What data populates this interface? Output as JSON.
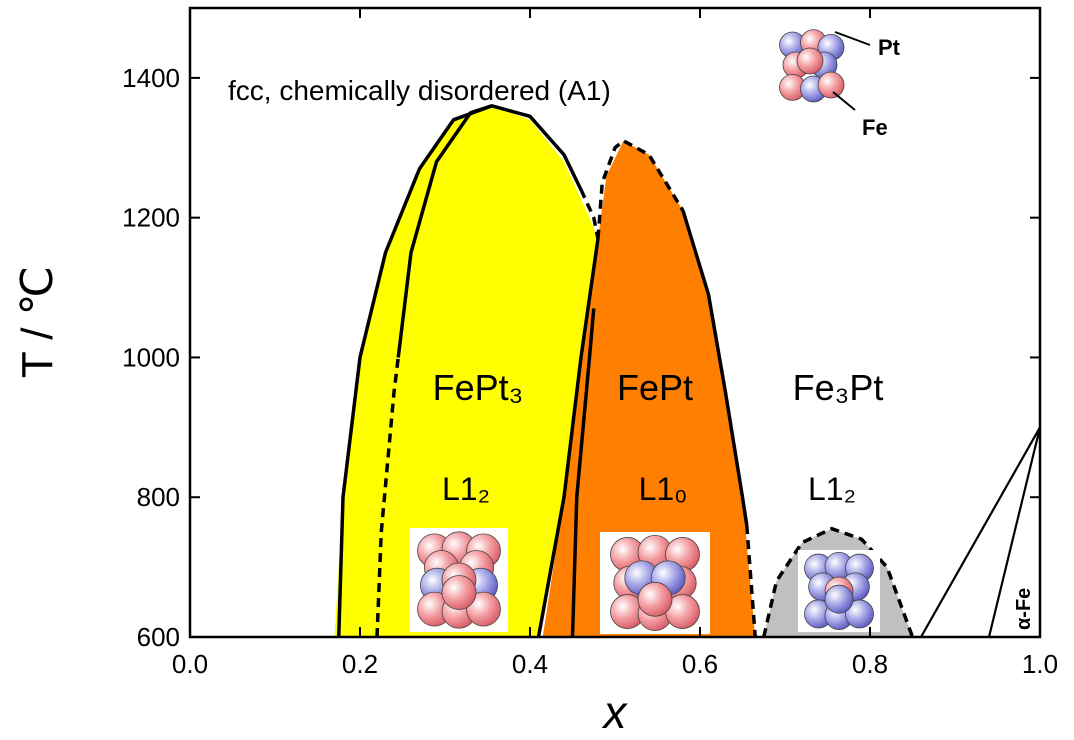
{
  "chart_data": {
    "type": "phase-diagram",
    "xlabel": "x",
    "ylabel": "T / ℃",
    "xlim": [
      0,
      1.0
    ],
    "ylim": [
      600,
      1500
    ],
    "xticks": [
      {
        "value": 0,
        "label": "0.0"
      },
      0.2,
      0.4,
      0.6,
      0.8,
      {
        "value": 1.0,
        "label": "1.0"
      }
    ],
    "yticks": [
      600,
      800,
      1000,
      1200,
      1400
    ],
    "regions": [
      {
        "color": "#ffff00",
        "x": [
          0.17,
          0.18,
          0.2,
          0.23,
          0.27,
          0.31,
          0.355,
          0.4,
          0.44,
          0.47,
          0.48,
          0.46,
          0.44,
          0.41
        ],
        "y": [
          600,
          800,
          1000,
          1150,
          1270,
          1340,
          1360,
          1340,
          1280,
          1200,
          1170,
          1000,
          800,
          600
        ]
      },
      {
        "color": "#ff7f00",
        "x": [
          0.415,
          0.44,
          0.46,
          0.48,
          0.49,
          0.51,
          0.54,
          0.58,
          0.61,
          0.63,
          0.65,
          0.665
        ],
        "y": [
          600,
          800,
          1000,
          1170,
          1260,
          1310,
          1290,
          1210,
          1090,
          950,
          800,
          600
        ]
      },
      {
        "color": "#c0c0c0",
        "x": [
          0.675,
          0.69,
          0.72,
          0.755,
          0.79,
          0.82,
          0.85
        ],
        "y": [
          600,
          680,
          735,
          755,
          740,
          700,
          600
        ]
      }
    ],
    "curves": [
      {
        "style": "solid",
        "x": [
          0.175,
          0.18,
          0.2,
          0.23,
          0.27,
          0.31,
          0.355,
          0.4,
          0.44,
          0.46
        ],
        "y": [
          600,
          800,
          1000,
          1150,
          1270,
          1340,
          1360,
          1345,
          1290,
          1240
        ]
      },
      {
        "style": "dashed",
        "x": [
          0.46,
          0.475,
          0.48
        ],
        "y": [
          1240,
          1200,
          1170
        ]
      },
      {
        "style": "dashed",
        "x": [
          0.22,
          0.225,
          0.24,
          0.245
        ],
        "y": [
          600,
          750,
          950,
          1000
        ]
      },
      {
        "style": "solid",
        "x": [
          0.245,
          0.26,
          0.29,
          0.33,
          0.355
        ],
        "y": [
          1000,
          1150,
          1280,
          1350,
          1360
        ]
      },
      {
        "style": "solid",
        "x": [
          0.41,
          0.44,
          0.46,
          0.48
        ],
        "y": [
          600,
          800,
          1000,
          1170
        ]
      },
      {
        "style": "solid",
        "x": [
          0.45,
          0.455,
          0.47,
          0.475
        ],
        "y": [
          600,
          800,
          1000,
          1070
        ]
      },
      {
        "style": "dashed",
        "x": [
          0.48,
          0.485,
          0.5,
          0.51,
          0.54,
          0.58
        ],
        "y": [
          1170,
          1250,
          1300,
          1310,
          1290,
          1210
        ]
      },
      {
        "style": "solid",
        "x": [
          0.58,
          0.61,
          0.63,
          0.65,
          0.655
        ],
        "y": [
          1210,
          1090,
          950,
          800,
          760
        ]
      },
      {
        "style": "dashed",
        "x": [
          0.655,
          0.66,
          0.665
        ],
        "y": [
          760,
          680,
          600
        ]
      },
      {
        "style": "dashed",
        "x": [
          0.675,
          0.69,
          0.72,
          0.755,
          0.79,
          0.82,
          0.85
        ],
        "y": [
          600,
          680,
          735,
          755,
          740,
          700,
          600
        ]
      },
      {
        "style": "solid",
        "x": [
          0.86,
          1.0
        ],
        "y": [
          600,
          900
        ]
      },
      {
        "style": "solid",
        "x": [
          0.94,
          1.0
        ],
        "y": [
          600,
          900
        ]
      }
    ],
    "annotations": [
      "fcc, chemically disordered (A1)",
      "Pt",
      "Fe",
      "FePt₃",
      "FePt",
      "Fe₃Pt",
      "L1₂",
      "L1₀",
      "L1₂",
      "α-Fe"
    ]
  }
}
